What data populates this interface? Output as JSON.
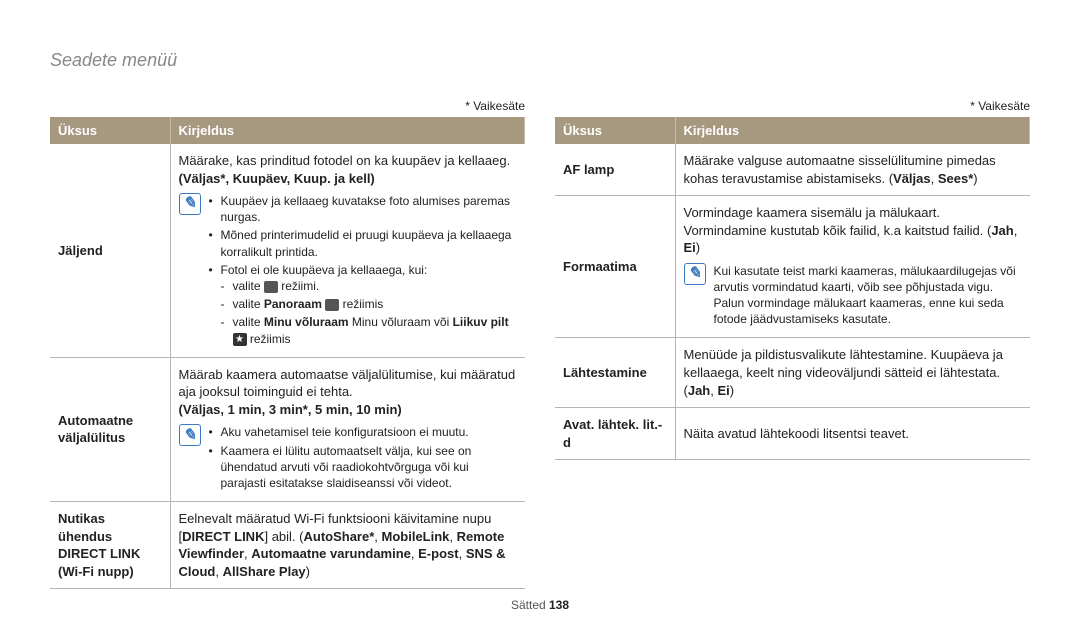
{
  "title": "Seadete menüü",
  "default_label": "* Vaikesäte",
  "left": {
    "header_col1": "Üksus",
    "header_col2": "Kirjeldus",
    "row1": {
      "label": "Jäljend",
      "lead": "Määrake, kas prinditud fotodel on ka kuupäev ja kellaaeg.",
      "opts": "(Väljas*, Kuupäev, Kuup. ja kell)",
      "note1": "Kuupäev ja kellaaeg kuvatakse foto alumises paremas nurgas.",
      "note2": "Mõned printerimudelid ei pruugi kuupäeva ja kellaaega korralikult printida.",
      "note3": "Fotol ei ole kuupäeva ja kellaaega, kui:",
      "sub1a": "valite ",
      "sub1b": " režiimi.",
      "sub2a": "valite ",
      "sub2b": "Panoraam",
      "sub2c": " režiimis",
      "sub3a": "valite ",
      "sub3b": "Minu võluraam",
      "sub3c": " Minu võluraam või ",
      "sub3d": "Liikuv pilt",
      "sub4": " režiimis"
    },
    "row2": {
      "label": "Automaatne väljalülitus",
      "lead": "Määrab kaamera automaatse väljalülitumise, kui määratud aja jooksul toiminguid ei tehta.",
      "opts": "(Väljas, 1 min, 3 min*, 5 min, 10 min)",
      "note1": "Aku vahetamisel teie konfiguratsioon ei muutu.",
      "note2": "Kaamera ei lülitu automaatselt välja, kui see on ühendatud arvuti või raadiokohtvõrguga või kui parajasti esitatakse slaidiseanssi või videot."
    },
    "row3": {
      "label": "Nutikas ühendus DIRECT LINK (Wi-Fi nupp)",
      "lead": "Eelnevalt määratud Wi-Fi funktsiooni käivitamine nupu [",
      "b1": "DIRECT LINK",
      "mid": "] abil. (",
      "b2": "AutoShare*",
      "c": ", ",
      "b3": "MobileLink",
      "b4": "Remote Viewfinder",
      "b5": "Automaatne varundamine",
      "b6": "E-post",
      "b7": "SNS & Cloud",
      "b8": "AllShare Play",
      "close": ")"
    }
  },
  "right": {
    "header_col1": "Üksus",
    "header_col2": "Kirjeldus",
    "row1": {
      "label": "AF lamp",
      "text": "Määrake valguse automaatne sisselülitumine pimedas kohas teravustamise abistamiseks. (",
      "b1": "Väljas",
      "b2": "Sees*",
      "close": ")"
    },
    "row2": {
      "label": "Formaatima",
      "lead1": "Vormindage kaamera sisemälu ja mälukaart. Vormindamine kustutab kõik failid, k.a kaitstud failid. (",
      "b1": "Jah",
      "b2": "Ei",
      "close": ")",
      "note": "Kui kasutate teist marki kaameras, mälukaardilugejas või arvutis vormindatud kaarti, võib see põhjustada vigu. Palun vormindage mälukaart kaameras, enne kui seda fotode jäädvustamiseks kasutate."
    },
    "row3": {
      "label": "Lähtestamine",
      "text": "Menüüde ja pildistusvalikute lähtestamine. Kuupäeva ja kellaaega, keelt ning videoväljundi sätteid ei lähtestata. (",
      "b1": "Jah",
      "b2": "Ei",
      "close": ")"
    },
    "row4": {
      "label": "Avat. lähtek. lit.-d",
      "text": "Näita avatud lähtekoodi litsentsi teavet."
    }
  },
  "footer": {
    "label": "Sätted ",
    "page": "138"
  }
}
